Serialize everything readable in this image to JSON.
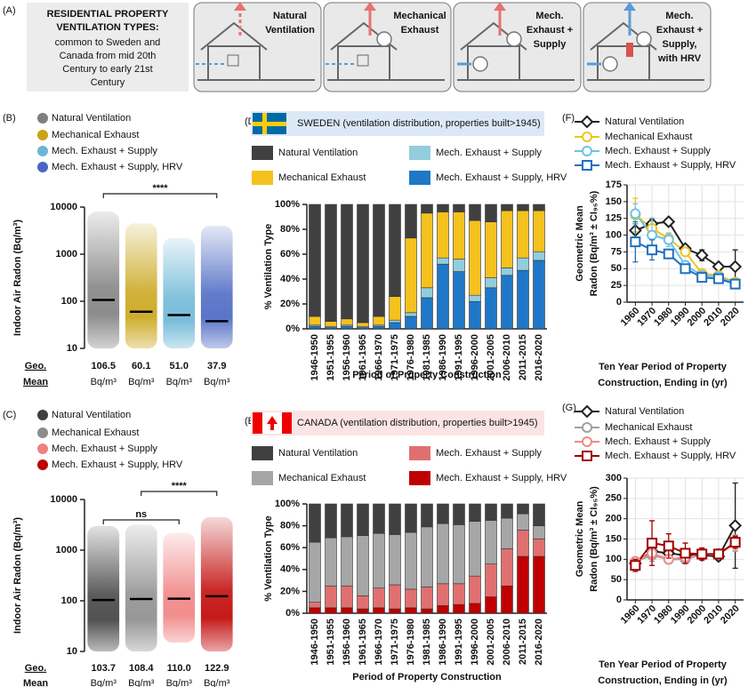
{
  "header_panel": {
    "panel": "(A)",
    "title": [
      "RESIDENTIAL PROPERTY",
      "VENTILATION TYPES:"
    ],
    "lines": [
      "common to Sweden and",
      "Canada from mid 20th",
      "Century to early 21st",
      "Century"
    ],
    "boxes": [
      {
        "label": [
          "Natural",
          "Ventilation"
        ]
      },
      {
        "label": [
          "Mechanical",
          "Exhaust"
        ]
      },
      {
        "label": [
          "Mech.",
          "Exhaust +",
          "Supply"
        ]
      },
      {
        "label": [
          "Mech.",
          "Exhaust +",
          "Supply,",
          "with HRV"
        ]
      }
    ]
  },
  "chart_data": [
    {
      "panel": "(B)",
      "type": "strip",
      "categories": [
        "Natural Ventilation",
        "Mechanical Exhaust",
        "Mech. Exhaust + Supply",
        "Mech. Exhaust + Supply, HRV"
      ],
      "colors": [
        "#7f7f7f",
        "#c9a416",
        "#6bb6d6",
        "#4866c2"
      ],
      "log": true,
      "ylim": [
        10,
        10000
      ],
      "yticks": [
        10,
        100,
        1000,
        10000
      ],
      "ylabel": "Indoor Air Radon (Bq/m³)",
      "ranges": [
        [
          10,
          8000
        ],
        [
          10,
          4500
        ],
        [
          10,
          2200
        ],
        [
          10,
          4000
        ]
      ],
      "means": [
        106.5,
        60.1,
        51.0,
        37.9
      ],
      "value_labels": [
        "106.5",
        "60.1",
        "51.0",
        "37.9"
      ],
      "mean_label": [
        "Geo.",
        "Mean"
      ],
      "unit": "Bq/m³",
      "comparisons": [
        {
          "from": 0,
          "to": 3,
          "label": "****"
        }
      ]
    },
    {
      "panel": "(C)",
      "type": "strip",
      "categories": [
        "Natural Ventilation",
        "Mechanical Exhaust",
        "Mech. Exhaust + Supply",
        "Mech. Exhaust + Supply, HRV"
      ],
      "colors": [
        "#3f3f3f",
        "#8c8c8c",
        "#f08080",
        "#c00000"
      ],
      "log": true,
      "ylim": [
        10,
        10000
      ],
      "yticks": [
        10,
        100,
        1000,
        10000
      ],
      "ylabel": "Indoor Air Radon (Bq/m³)",
      "ranges": [
        [
          10,
          3000
        ],
        [
          10,
          3200
        ],
        [
          15,
          2200
        ],
        [
          10,
          4500
        ]
      ],
      "means": [
        103.7,
        108.4,
        110.0,
        122.9
      ],
      "value_labels": [
        "103.7",
        "108.4",
        "110.0",
        "122.9"
      ],
      "mean_label": [
        "Geo.",
        "Mean"
      ],
      "unit": "Bq/m³",
      "comparisons": [
        {
          "from": 0,
          "to": 2,
          "label": "ns"
        },
        {
          "from": 1,
          "to": 3,
          "label": "****"
        }
      ]
    },
    {
      "panel": "(D)",
      "type": "stacked-bar",
      "title": "SWEDEN (ventilation distribution, properties built>1945)",
      "categories": [
        "1946-1950",
        "1951-1955",
        "1956-1960",
        "1961-1965",
        "1966-1970",
        "1971-1975",
        "1976-1980",
        "1981-1985",
        "1986-1990",
        "1991-1995",
        "1996-2000",
        "2001-2005",
        "2006-2010",
        "2011-2015",
        "2016-2020"
      ],
      "series": [
        {
          "name": "Natural Ventilation",
          "color": "#404040",
          "values": [
            90,
            94,
            92,
            95,
            90,
            74,
            27,
            7,
            6,
            6,
            13,
            14,
            5,
            5,
            5
          ]
        },
        {
          "name": "Mechanical Exhaust",
          "color": "#f5c11e",
          "values": [
            7,
            4,
            5,
            3,
            7,
            19,
            60,
            60,
            37,
            38,
            60,
            45,
            46,
            38,
            33
          ]
        },
        {
          "name": "Mech. Exhaust + Supply",
          "color": "#92cddc",
          "values": [
            1,
            1,
            1,
            1,
            1,
            2,
            3,
            8,
            5,
            10,
            5,
            8,
            6,
            10,
            7
          ]
        },
        {
          "name": "Mech. Exhaust + Supply, HRV",
          "color": "#1f77c8",
          "values": [
            2,
            1,
            2,
            1,
            2,
            5,
            10,
            25,
            52,
            46,
            22,
            33,
            43,
            47,
            55
          ]
        }
      ],
      "ylim": [
        0,
        100
      ],
      "yticks": [
        {
          "value": 0,
          "label": "0%"
        },
        {
          "value": 20,
          "label": "20%"
        },
        {
          "value": 40,
          "label": "40%"
        },
        {
          "value": 60,
          "label": "60%"
        },
        {
          "value": 80,
          "label": "80%"
        },
        {
          "value": 100,
          "label": "100%"
        }
      ],
      "ylabel": "% Ventilation Type",
      "xlabel": "Period of Property Construction"
    },
    {
      "panel": "(E)",
      "type": "stacked-bar",
      "title": "CANADA (ventilation distribution, properties built>1945)",
      "categories": [
        "1946-1950",
        "1951-1955",
        "1956-1960",
        "1961-1965",
        "1966-1970",
        "1971-1975",
        "1976-1980",
        "1981-1985",
        "1986-1990",
        "1991-1995",
        "1996-2000",
        "2001-2005",
        "2006-2010",
        "2011-2015",
        "2016-2020"
      ],
      "series": [
        {
          "name": "Natural Ventilation",
          "color": "#404040",
          "values": [
            35,
            31,
            30,
            29,
            27,
            28,
            26,
            21,
            18,
            19,
            16,
            15,
            13,
            9,
            20
          ]
        },
        {
          "name": "Mechanical Exhaust",
          "color": "#a6a6a6",
          "values": [
            55,
            44,
            45,
            55,
            50,
            46,
            52,
            55,
            55,
            54,
            50,
            40,
            28,
            15,
            12
          ]
        },
        {
          "name": "Mech. Exhaust + Supply",
          "color": "#e07070",
          "values": [
            5,
            20,
            20,
            12,
            18,
            22,
            17,
            20,
            20,
            19,
            25,
            30,
            34,
            24,
            16
          ]
        },
        {
          "name": "Mech. Exhaust + Supply, HRV",
          "color": "#c00000",
          "values": [
            5,
            5,
            5,
            4,
            5,
            4,
            5,
            4,
            7,
            8,
            9,
            15,
            25,
            52,
            52
          ]
        }
      ],
      "ylim": [
        0,
        100
      ],
      "yticks": [
        {
          "value": 0,
          "label": "0%"
        },
        {
          "value": 20,
          "label": "20%"
        },
        {
          "value": 40,
          "label": "40%"
        },
        {
          "value": 60,
          "label": "60%"
        },
        {
          "value": 80,
          "label": "80%"
        },
        {
          "value": 100,
          "label": "100%"
        }
      ],
      "ylabel": "% Ventilation Type",
      "xlabel": "Period of Property Construction"
    },
    {
      "panel": "(F)",
      "type": "line",
      "x": [
        1960,
        1970,
        1980,
        1990,
        2000,
        2010,
        2020
      ],
      "xlim": [
        1955,
        2025
      ],
      "xticks": [
        1960,
        1970,
        1980,
        1990,
        2000,
        2010,
        2020
      ],
      "ylim": [
        0,
        175
      ],
      "yticks": [
        0,
        25,
        50,
        75,
        100,
        125,
        150,
        175
      ],
      "grid": true,
      "series": [
        {
          "name": "Natural Ventilation",
          "color": "#222222",
          "marker": "diamond",
          "values": [
            107,
            117,
            120,
            80,
            70,
            53,
            53
          ],
          "errors": [
            10,
            8,
            5,
            5,
            8,
            5,
            25
          ]
        },
        {
          "name": "Mechanical Exhaust",
          "color": "#f2c21b",
          "marker": "circle",
          "values": [
            130,
            110,
            95,
            75,
            43,
            40,
            30
          ],
          "errors": [
            25,
            10,
            8,
            5,
            4,
            4,
            4
          ]
        },
        {
          "name": "Mech. Exhaust + Supply",
          "color": "#6cc3e8",
          "marker": "circle",
          "values": [
            132,
            100,
            93,
            55,
            40,
            38,
            28
          ],
          "errors": [
            15,
            25,
            10,
            5,
            4,
            4,
            4
          ]
        },
        {
          "name": "Mech. Exhaust + Supply, HRV",
          "color": "#1f6fc0",
          "marker": "square",
          "values": [
            90,
            78,
            72,
            50,
            37,
            35,
            27
          ],
          "errors": [
            30,
            15,
            5,
            4,
            3,
            3,
            3
          ]
        }
      ],
      "ylabel": [
        "Geometric Mean",
        "Radon (Bq/m³ ± CI₉₅%)"
      ],
      "xlabel": [
        "Ten Year Period of Property",
        "Construction, Ending in (yr)"
      ]
    },
    {
      "panel": "(G)",
      "type": "line",
      "x": [
        1960,
        1970,
        1980,
        1990,
        2000,
        2010,
        2020
      ],
      "xlim": [
        1955,
        2025
      ],
      "xticks": [
        1960,
        1970,
        1980,
        1990,
        2000,
        2010,
        2020
      ],
      "ylim": [
        0,
        300
      ],
      "yticks": [
        0,
        50,
        100,
        150,
        200,
        250,
        300
      ],
      "grid": true,
      "series": [
        {
          "name": "Natural Ventilation",
          "color": "#222222",
          "marker": "diamond",
          "values": [
            90,
            120,
            115,
            110,
            110,
            107,
            183
          ],
          "errors": [
            15,
            20,
            10,
            15,
            10,
            10,
            105
          ]
        },
        {
          "name": "Mechanical Exhaust",
          "color": "#a0a0a0",
          "marker": "circle",
          "values": [
            95,
            110,
            100,
            100,
            112,
            112,
            140
          ],
          "errors": [
            10,
            15,
            10,
            8,
            8,
            8,
            20
          ]
        },
        {
          "name": "Mech. Exhaust + Supply",
          "color": "#f08a8a",
          "marker": "circle",
          "values": [
            95,
            115,
            100,
            105,
            110,
            115,
            140
          ],
          "errors": [
            10,
            15,
            10,
            8,
            8,
            8,
            18
          ]
        },
        {
          "name": "Mech. Exhaust + Supply, HRV",
          "color": "#a00000",
          "marker": "square",
          "values": [
            85,
            140,
            133,
            115,
            113,
            113,
            142
          ],
          "errors": [
            15,
            55,
            30,
            25,
            15,
            10,
            15
          ]
        }
      ],
      "ylabel": [
        "Geometric Mean",
        "Radon (Bq/m³ ± CI₉₅%)"
      ],
      "xlabel": [
        "Ten Year Period of Property",
        "Construction, Ending in (yr)"
      ]
    }
  ]
}
